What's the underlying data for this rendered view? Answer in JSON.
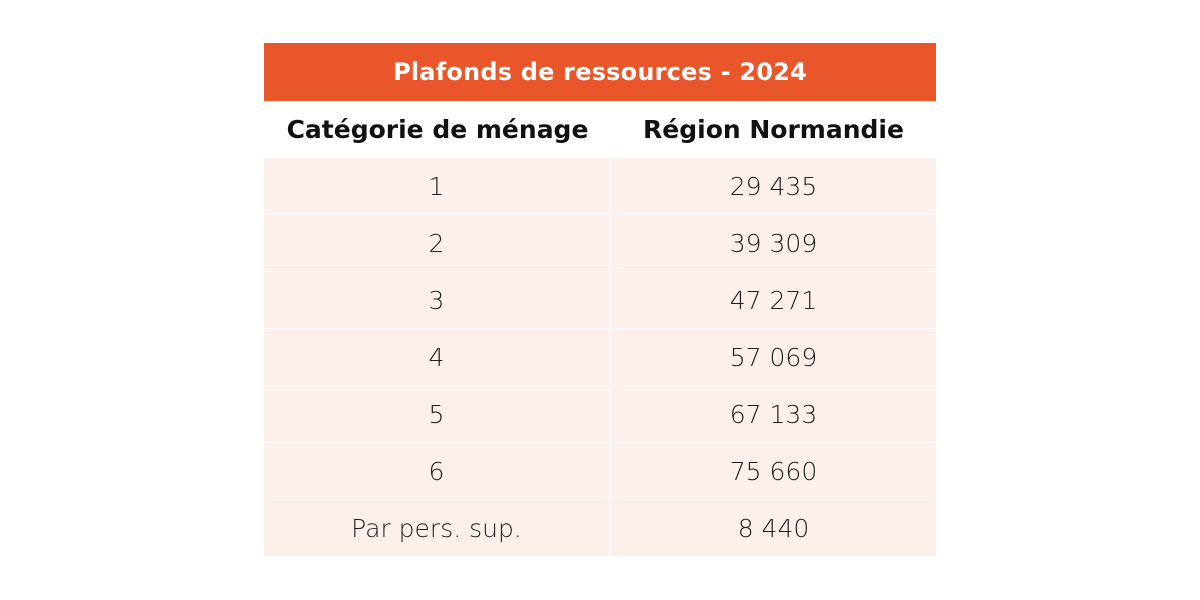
{
  "table": {
    "title": "Plafonds de ressources - 2024",
    "headers": [
      "Catégorie de ménage",
      "Région Normandie"
    ],
    "rows": [
      [
        "1",
        "29 435"
      ],
      [
        "2",
        "39 309"
      ],
      [
        "3",
        "47 271"
      ],
      [
        "4",
        "57 069"
      ],
      [
        "5",
        "67 133"
      ],
      [
        "6",
        "75 660"
      ],
      [
        "Par pers. sup.",
        "8 440"
      ]
    ],
    "colors": {
      "title_bg": "#e8562a",
      "title_text": "#ffffff",
      "row_bg": "#fdf0ea"
    }
  }
}
